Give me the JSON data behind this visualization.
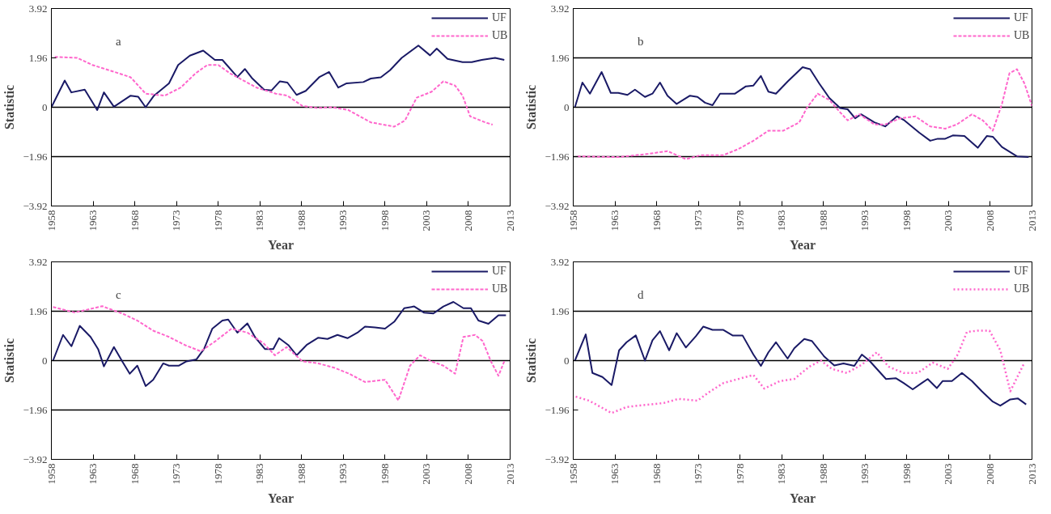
{
  "chart_data": [
    {
      "type": "line",
      "xlabel": "Year",
      "ylabel": "Statistic",
      "annotations": [
        "a"
      ],
      "xlim": [
        1958,
        2013
      ],
      "xticks": [
        1958,
        1963,
        1968,
        1973,
        1978,
        1983,
        1988,
        1993,
        1998,
        2003,
        2008,
        2013
      ],
      "ylim": [
        -3.92,
        3.92
      ],
      "yticks": [
        -3.92,
        -1.96,
        0,
        1.96,
        3.92
      ],
      "legend": "top right",
      "ref_lines": [
        {
          "axis": "y",
          "value": 0
        },
        {
          "axis": "y",
          "value": -1.96
        }
      ],
      "series": [
        {
          "name": "UF",
          "color": "#1a1a66",
          "line_style": "solid",
          "x": [
            1958,
            1959.6,
            1960.4,
            1962.0,
            1963.5,
            1964.3,
            1965.5,
            1967.5,
            1968.4,
            1969.3,
            1970.3,
            1972.1,
            1973.2,
            1974.6,
            1976.2,
            1977.6,
            1978.5,
            1980.3,
            1981.2,
            1982.1,
            1983.5,
            1984.4,
            1985.4,
            1986.3,
            1987.4,
            1988.5,
            1990.1,
            1991.3,
            1992.4,
            1993.4,
            1995.4,
            1996.3,
            1997.5,
            1998.6,
            2000.0,
            2002.0,
            2003.4,
            2004.2,
            2005.5,
            2007.3,
            2008.4,
            2009.6,
            2011.2,
            2012.3
          ],
          "values": [
            0,
            1.06,
            0.59,
            0.7,
            -0.11,
            0.59,
            0.02,
            0.46,
            0.42,
            0,
            0.46,
            0.95,
            1.68,
            2.05,
            2.25,
            1.88,
            1.88,
            1.2,
            1.52,
            1.14,
            0.7,
            0.67,
            1.03,
            0.98,
            0.49,
            0.65,
            1.19,
            1.4,
            0.78,
            0.95,
            1.0,
            1.14,
            1.19,
            1.47,
            1.96,
            2.45,
            2.06,
            2.33,
            1.92,
            1.79,
            1.79,
            1.88,
            1.96,
            1.88
          ]
        },
        {
          "name": "UB",
          "color": "#ff66cc",
          "line_style": "dashed",
          "x": [
            1958.4,
            1961.1,
            1962.9,
            1965.2,
            1967.5,
            1969.3,
            1971.6,
            1973.5,
            1975.3,
            1976.7,
            1978.0,
            1979.4,
            1981.2,
            1982.6,
            1984.9,
            1986.3,
            1988.1,
            1989.9,
            1991.7,
            1993.6,
            1996.3,
            1999.1,
            2000.4,
            2001.8,
            2003.6,
            2005.0,
            2006.4,
            2007.3,
            2008.2,
            2010.0,
            2010.9
          ],
          "values": [
            2.0,
            1.96,
            1.68,
            1.44,
            1.19,
            0.54,
            0.46,
            0.78,
            1.35,
            1.68,
            1.68,
            1.35,
            1.03,
            0.78,
            0.54,
            0.46,
            0.05,
            -0.03,
            0,
            -0.11,
            -0.6,
            -0.77,
            -0.52,
            0.38,
            0.62,
            1.03,
            0.86,
            0.46,
            -0.36,
            -0.6,
            -0.69
          ]
        }
      ]
    },
    {
      "type": "line",
      "xlabel": "Year",
      "ylabel": "Statistic",
      "annotations": [
        "b"
      ],
      "xlim": [
        1958,
        2013
      ],
      "xticks": [
        1958,
        1963,
        1968,
        1973,
        1978,
        1983,
        1988,
        1993,
        1998,
        2003,
        2008,
        2013
      ],
      "ylim": [
        -3.92,
        3.92
      ],
      "yticks": [
        -3.92,
        -1.96,
        0,
        1.96,
        3.92
      ],
      "legend": "top right",
      "ref_lines": [
        {
          "axis": "y",
          "value": 1.96
        },
        {
          "axis": "y",
          "value": 0
        },
        {
          "axis": "y",
          "value": -1.96
        }
      ],
      "series": [
        {
          "name": "UF",
          "color": "#1a1a66",
          "line_style": "solid",
          "x": [
            1958.2,
            1959.1,
            1960.0,
            1961.4,
            1962.5,
            1963.4,
            1964.5,
            1965.4,
            1966.6,
            1967.5,
            1968.4,
            1969.3,
            1970.4,
            1972.0,
            1972.9,
            1973.8,
            1974.7,
            1975.6,
            1977.4,
            1978.7,
            1979.6,
            1980.5,
            1981.4,
            1982.3,
            1983.7,
            1985.5,
            1986.4,
            1987.5,
            1988.7,
            1990.0,
            1990.9,
            1991.8,
            1992.5,
            1994.1,
            1995.4,
            1996.8,
            1997.7,
            1999.5,
            2000.8,
            2001.7,
            2002.6,
            2003.5,
            2004.9,
            2006.5,
            2007.6,
            2008.3,
            2009.4,
            2011.2,
            2012.6
          ],
          "values": [
            0,
            0.98,
            0.54,
            1.4,
            0.57,
            0.57,
            0.49,
            0.7,
            0.41,
            0.54,
            0.98,
            0.46,
            0.13,
            0.46,
            0.41,
            0.18,
            0.08,
            0.54,
            0.54,
            0.83,
            0.86,
            1.24,
            0.62,
            0.54,
            1.02,
            1.59,
            1.51,
            0.94,
            0.37,
            -0.03,
            -0.08,
            -0.44,
            -0.28,
            -0.6,
            -0.76,
            -0.36,
            -0.52,
            -1.01,
            -1.33,
            -1.25,
            -1.25,
            -1.12,
            -1.14,
            -1.61,
            -1.14,
            -1.17,
            -1.58,
            -1.95,
            -1.98
          ]
        },
        {
          "name": "UB",
          "color": "#ff66cc",
          "line_style": "dashed",
          "x": [
            1958.5,
            1963.4,
            1967.0,
            1969.3,
            1971.5,
            1973.3,
            1976.0,
            1977.8,
            1979.6,
            1981.4,
            1983.2,
            1985.1,
            1986.0,
            1987.3,
            1988.7,
            1990.0,
            1990.9,
            1992.3,
            1994.1,
            1995.4,
            1997.2,
            1999.0,
            2000.8,
            2002.6,
            2004.0,
            2005.8,
            2007.1,
            2008.3,
            2009.4,
            2010.3,
            2011.2,
            2012.1,
            2013.0
          ],
          "values": [
            -1.95,
            -1.98,
            -1.85,
            -1.74,
            -2.06,
            -1.9,
            -1.9,
            -1.66,
            -1.33,
            -0.93,
            -0.93,
            -0.6,
            -0.03,
            0.54,
            0.29,
            -0.2,
            -0.52,
            -0.28,
            -0.68,
            -0.68,
            -0.44,
            -0.36,
            -0.76,
            -0.85,
            -0.68,
            -0.28,
            -0.52,
            -0.93,
            0.13,
            1.35,
            1.51,
            0.94,
            0.05
          ]
        }
      ]
    },
    {
      "type": "line",
      "xlabel": "Year",
      "ylabel": "Statistic",
      "annotations": [
        "c"
      ],
      "xlim": [
        1958,
        2013
      ],
      "xticks": [
        1958,
        1963,
        1968,
        1973,
        1978,
        1983,
        1988,
        1993,
        1998,
        2003,
        2008,
        2013
      ],
      "ylim": [
        -3.92,
        3.92
      ],
      "yticks": [
        -3.92,
        -1.96,
        0,
        1.96,
        3.92
      ],
      "legend": "top right",
      "ref_lines": [
        {
          "axis": "y",
          "value": 1.96
        },
        {
          "axis": "y",
          "value": 0
        },
        {
          "axis": "y",
          "value": -1.96
        }
      ],
      "series": [
        {
          "name": "UF",
          "color": "#1a1a66",
          "line_style": "solid",
          "x": [
            1958.2,
            1959.4,
            1960.4,
            1961.4,
            1962.7,
            1963.6,
            1964.3,
            1965.5,
            1966.5,
            1967.4,
            1968.3,
            1969.3,
            1970.2,
            1971.4,
            1972.1,
            1973.3,
            1974.2,
            1975.4,
            1976.3,
            1977.3,
            1978.5,
            1979.2,
            1980.3,
            1981.5,
            1982.4,
            1983.6,
            1984.6,
            1985.3,
            1986.4,
            1987.4,
            1988.6,
            1990.0,
            1991.1,
            1992.3,
            1993.5,
            1994.7,
            1995.6,
            1996.8,
            1998.0,
            1999.1,
            2000.3,
            2001.5,
            2002.7,
            2003.8,
            2005.0,
            2006.2,
            2007.4,
            2008.3,
            2009.2,
            2010.4,
            2011.6,
            2012.5
          ],
          "values": [
            0,
            1.02,
            0.57,
            1.38,
            0.94,
            0.46,
            -0.23,
            0.54,
            -0.03,
            -0.52,
            -0.2,
            -1.01,
            -0.76,
            -0.11,
            -0.2,
            -0.2,
            -0.03,
            0.05,
            0.46,
            1.27,
            1.59,
            1.63,
            1.11,
            1.48,
            0.94,
            0.46,
            0.46,
            0.89,
            0.62,
            0.21,
            0.62,
            0.91,
            0.86,
            1.02,
            0.89,
            1.11,
            1.35,
            1.32,
            1.27,
            1.54,
            2.08,
            2.15,
            1.9,
            1.87,
            2.15,
            2.33,
            2.08,
            2.08,
            1.59,
            1.46,
            1.8,
            1.8
          ]
        },
        {
          "name": "UB",
          "color": "#ff66cc",
          "line_style": "dashed",
          "x": [
            1958.2,
            1960.8,
            1964.1,
            1966.5,
            1968.3,
            1970.2,
            1972.1,
            1974.0,
            1975.9,
            1977.7,
            1979.6,
            1981.5,
            1983.4,
            1984.8,
            1986.2,
            1988.1,
            1990.0,
            1991.9,
            1993.7,
            1995.6,
            1998.0,
            1999.6,
            2001.0,
            2002.2,
            2003.6,
            2005.0,
            2006.4,
            2007.4,
            2008.8,
            2009.7,
            2010.7,
            2011.6,
            2012.3
          ],
          "values": [
            2.13,
            1.91,
            2.16,
            1.87,
            1.59,
            1.19,
            0.94,
            0.62,
            0.37,
            0.78,
            1.27,
            1.11,
            0.7,
            0.21,
            0.54,
            -0.03,
            -0.11,
            -0.28,
            -0.52,
            -0.85,
            -0.76,
            -1.58,
            -0.2,
            0.21,
            -0.03,
            -0.2,
            -0.52,
            0.94,
            1.02,
            0.78,
            -0.03,
            -0.6,
            -0.03
          ]
        }
      ]
    },
    {
      "type": "line",
      "xlabel": "Year",
      "ylabel": "Statistic",
      "annotations": [
        "d"
      ],
      "xlim": [
        1958,
        2013
      ],
      "xticks": [
        1958,
        1963,
        1968,
        1973,
        1978,
        1983,
        1988,
        1993,
        1998,
        2003,
        2008,
        2013
      ],
      "ylim": [
        -3.92,
        3.92
      ],
      "yticks": [
        -3.92,
        -1.96,
        0,
        1.96,
        3.92
      ],
      "legend": "top right",
      "ref_lines": [
        {
          "axis": "y",
          "value": 1.96
        },
        {
          "axis": "y",
          "value": 0
        }
      ],
      "series": [
        {
          "name": "UF",
          "color": "#1a1a66",
          "line_style": "solid",
          "x": [
            1958.2,
            1959.5,
            1960.3,
            1961.5,
            1962.6,
            1963.5,
            1964.4,
            1965.5,
            1966.6,
            1967.5,
            1968.4,
            1969.5,
            1970.4,
            1971.5,
            1972.7,
            1973.6,
            1974.7,
            1976.0,
            1977.1,
            1978.3,
            1979.6,
            1980.5,
            1981.4,
            1982.3,
            1983.7,
            1984.5,
            1985.7,
            1986.6,
            1988.1,
            1989.3,
            1990.4,
            1991.7,
            1992.6,
            1993.5,
            1994.4,
            1995.5,
            1996.7,
            1997.6,
            1998.7,
            1999.8,
            2000.5,
            2001.6,
            2002.3,
            2003.4,
            2004.6,
            2005.8,
            2007.0,
            2008.3,
            2009.2,
            2010.4,
            2011.3,
            2012.3
          ],
          "values": [
            0,
            1.04,
            -0.49,
            -0.65,
            -0.97,
            0.41,
            0.73,
            1.0,
            0,
            0.81,
            1.17,
            0.41,
            1.09,
            0.52,
            0.97,
            1.35,
            1.22,
            1.22,
            1.0,
            1.0,
            0.24,
            -0.21,
            0.33,
            0.73,
            0.08,
            0.49,
            0.86,
            0.78,
            0.16,
            -0.19,
            -0.11,
            -0.21,
            0.24,
            0,
            -0.33,
            -0.73,
            -0.7,
            -0.89,
            -1.14,
            -0.89,
            -0.73,
            -1.09,
            -0.81,
            -0.81,
            -0.49,
            -0.81,
            -1.22,
            -1.63,
            -1.79,
            -1.54,
            -1.5,
            -1.74
          ]
        },
        {
          "name": "UB",
          "color": "#ff66cc",
          "line_style": "dotted",
          "x": [
            1958.3,
            1959.9,
            1962.6,
            1964.4,
            1966.6,
            1968.9,
            1970.6,
            1972.9,
            1974.2,
            1976.0,
            1977.8,
            1979.6,
            1980.9,
            1982.8,
            1984.5,
            1986.3,
            1987.7,
            1989.0,
            1990.8,
            1992.6,
            1994.4,
            1995.8,
            1997.6,
            1999.3,
            2001.1,
            2002.9,
            2004.1,
            2005.2,
            2006.5,
            2007.9,
            2009.2,
            2010.4,
            2011.0,
            2012.1
          ],
          "values": [
            -1.43,
            -1.59,
            -2.08,
            -1.84,
            -1.76,
            -1.68,
            -1.52,
            -1.59,
            -1.27,
            -0.89,
            -0.73,
            -0.57,
            -1.11,
            -0.81,
            -0.73,
            -0.24,
            0,
            -0.33,
            -0.49,
            -0.16,
            0.33,
            -0.24,
            -0.49,
            -0.49,
            -0.08,
            -0.33,
            0.24,
            1.14,
            1.19,
            1.19,
            0.41,
            -1.22,
            -0.81,
            -0.08
          ]
        }
      ]
    }
  ]
}
